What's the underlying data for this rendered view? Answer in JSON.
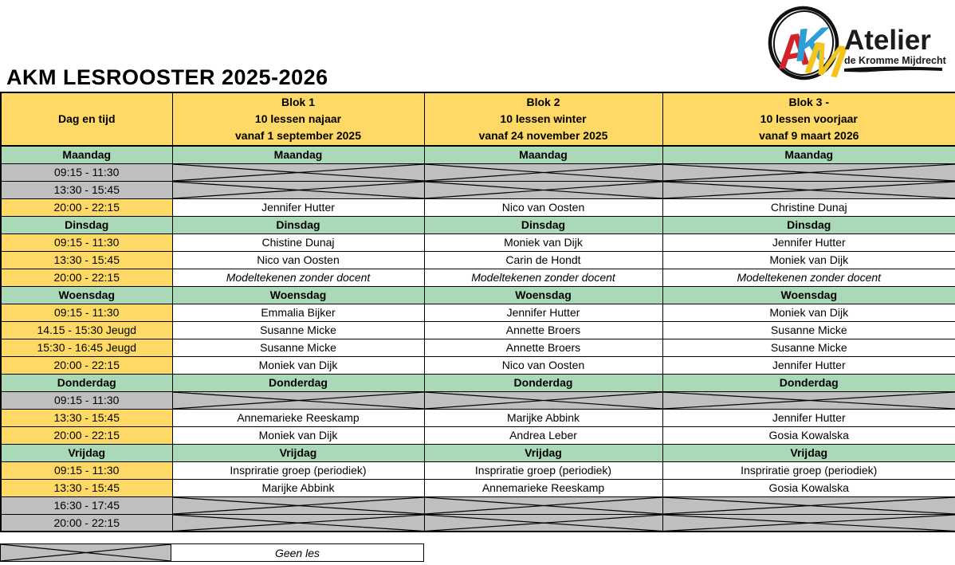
{
  "title": "AKM LESROOSTER 2025-2026",
  "logo": {
    "letters": [
      "A",
      "K",
      "M"
    ],
    "name": "Atelier",
    "subtitle": "de Kromme Mijdrecht"
  },
  "colors": {
    "header_yellow": "#FFD966",
    "day_green": "#A9D9B6",
    "closed_gray": "#BFBFBF",
    "letter_red": "#D2232A",
    "letter_blue": "#2E9FD4",
    "letter_yellow": "#F2C51D"
  },
  "header": {
    "col_day": "Dag en tijd",
    "blocks": [
      {
        "lines": [
          "Blok 1",
          "10 lessen najaar",
          "vanaf 1 september 2025"
        ]
      },
      {
        "lines": [
          "Blok 2",
          "10 lessen winter",
          "vanaf 24 november 2025"
        ]
      },
      {
        "lines": [
          "Blok 3 -",
          "10 lessen voorjaar",
          "vanaf 9 maart 2026"
        ]
      }
    ]
  },
  "days": [
    {
      "name": "Maandag",
      "rows": [
        {
          "time": "09:15 - 11:30",
          "closed": true,
          "cells": [
            "",
            "",
            ""
          ]
        },
        {
          "time": "13:30 - 15:45",
          "closed": true,
          "cells": [
            "",
            "",
            ""
          ]
        },
        {
          "time": "20:00 - 22:15",
          "closed": false,
          "cells": [
            "Jennifer Hutter",
            "Nico van Oosten",
            "Christine Dunaj"
          ]
        }
      ]
    },
    {
      "name": "Dinsdag",
      "rows": [
        {
          "time": "09:15 - 11:30",
          "closed": false,
          "cells": [
            "Chistine Dunaj",
            "Moniek van Dijk",
            "Jennifer Hutter"
          ]
        },
        {
          "time": "13:30 - 15:45",
          "closed": false,
          "cells": [
            "Nico van Oosten",
            "Carin de Hondt",
            "Moniek van Dijk"
          ]
        },
        {
          "time": "20:00 - 22:15",
          "closed": false,
          "italic": true,
          "cells": [
            "Modeltekenen zonder docent",
            "Modeltekenen zonder docent",
            "Modeltekenen zonder docent"
          ]
        }
      ]
    },
    {
      "name": "Woensdag",
      "rows": [
        {
          "time": "09:15 - 11:30",
          "closed": false,
          "cells": [
            "Emmalia Bijker",
            "Jennifer Hutter",
            "Moniek van Dijk"
          ]
        },
        {
          "time": "14.15 - 15:30 Jeugd",
          "closed": false,
          "cells": [
            "Susanne Micke",
            "Annette Broers",
            "Susanne Micke"
          ]
        },
        {
          "time": "15:30 - 16:45 Jeugd",
          "closed": false,
          "cells": [
            "Susanne Micke",
            "Annette Broers",
            "Susanne Micke"
          ]
        },
        {
          "time": "20:00 - 22:15",
          "closed": false,
          "cells": [
            "Moniek van Dijk",
            "Nico van Oosten",
            "Jennifer Hutter"
          ]
        }
      ]
    },
    {
      "name": "Donderdag",
      "rows": [
        {
          "time": "09:15 - 11:30",
          "closed": true,
          "cells": [
            "",
            "",
            ""
          ]
        },
        {
          "time": "13:30 - 15:45",
          "closed": false,
          "cells": [
            "Annemarieke Reeskamp",
            "Marijke Abbink",
            "Jennifer Hutter"
          ]
        },
        {
          "time": "20:00 - 22:15",
          "closed": false,
          "cells": [
            "Moniek van Dijk",
            "Andrea Leber",
            "Gosia Kowalska"
          ]
        }
      ]
    },
    {
      "name": "Vrijdag",
      "rows": [
        {
          "time": "09:15 - 11:30",
          "closed": false,
          "cells": [
            "Inspriratie groep (periodiek)",
            "Inspriratie groep (periodiek)",
            "Inspriratie groep (periodiek)"
          ]
        },
        {
          "time": "13:30 - 15:45",
          "closed": false,
          "cells": [
            "Marijke Abbink",
            "Annemarieke Reeskamp",
            "Gosia Kowalska"
          ]
        },
        {
          "time": "16:30 - 17:45",
          "closed": true,
          "cells": [
            "",
            "",
            ""
          ]
        },
        {
          "time": "20:00 - 22:15",
          "closed": true,
          "cells": [
            "",
            "",
            ""
          ]
        }
      ]
    }
  ],
  "legend": {
    "label": "Geen les"
  }
}
